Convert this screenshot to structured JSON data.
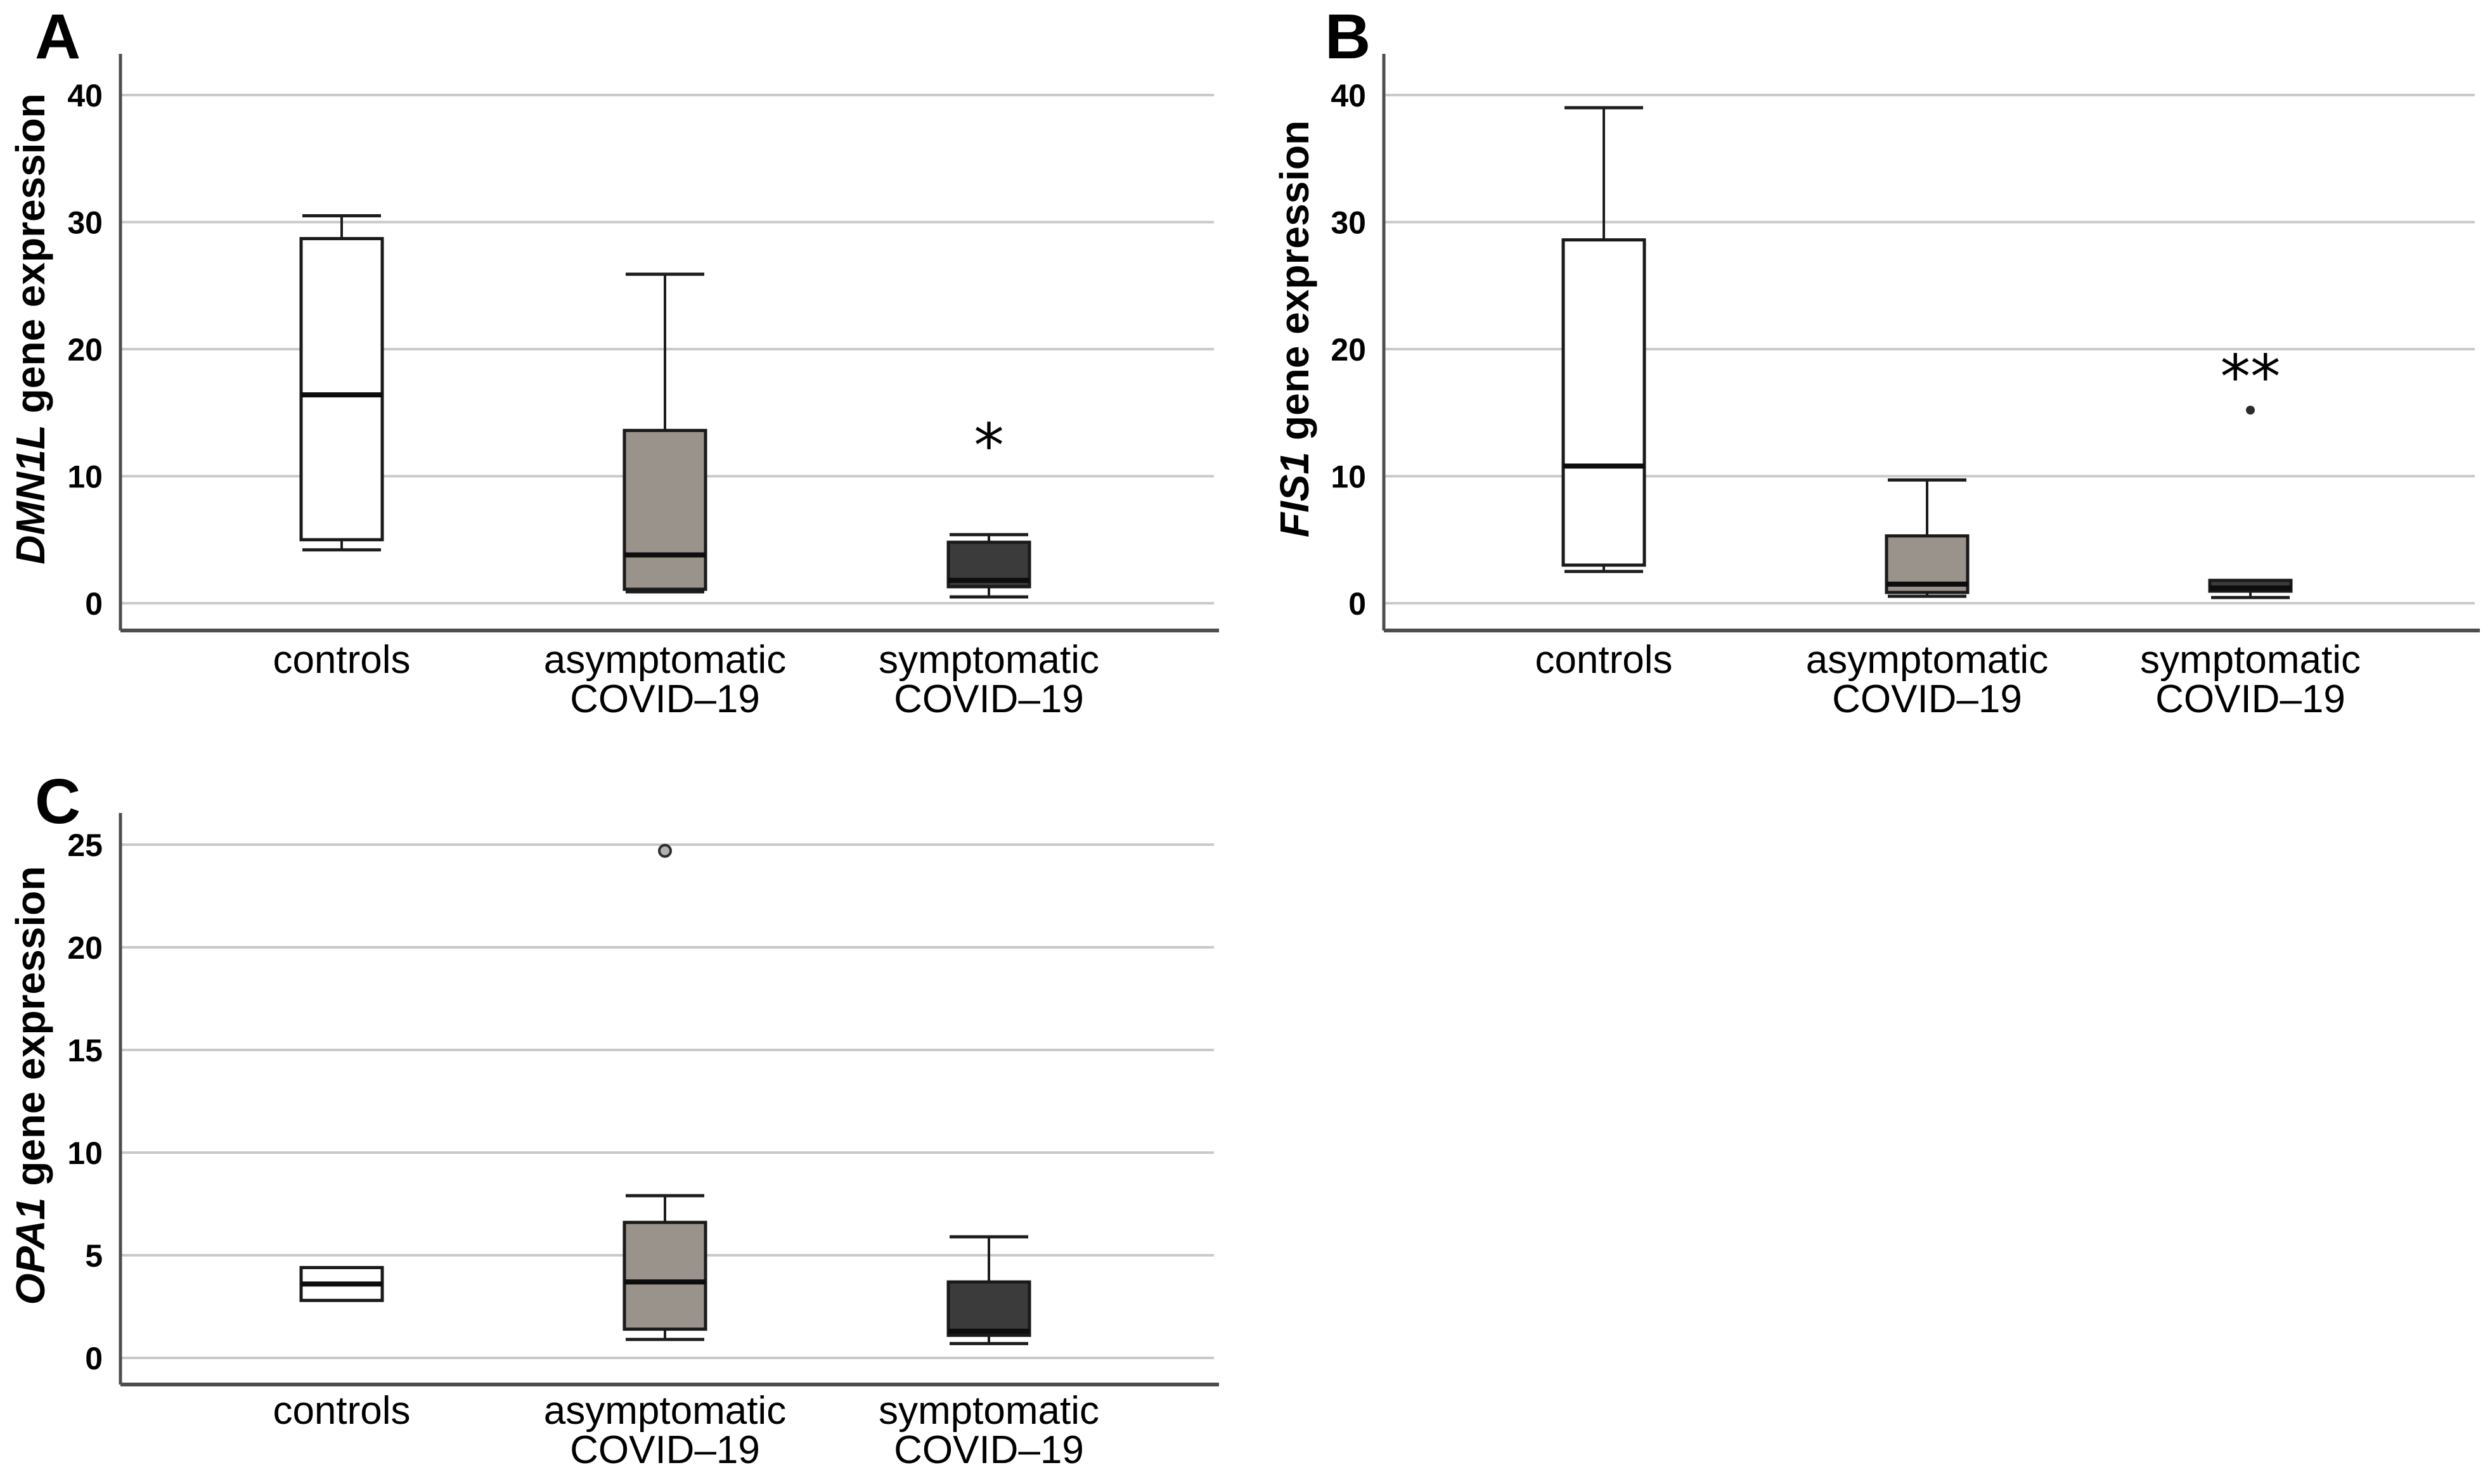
{
  "figure": {
    "background": "#ffffff",
    "styles": {
      "gridline_color": "#c9c9c9",
      "axis_color": "#4d4d4d",
      "box_border_color": "#1a1a1a",
      "whisker_color": "#1d1d1d",
      "median_color": "#0d0d0d",
      "white_box_fill": "#ffffff",
      "gray_box_fill": "#9a938c",
      "dark_box_fill": "#3b3b3b",
      "text_color": "#000000"
    }
  },
  "chart_data": [
    {
      "type": "box",
      "panel_letter": "A",
      "ylabel_gene": "DMN1L",
      "ylabel_rest": "gene expression",
      "yticks": [
        0,
        10,
        20,
        30,
        40
      ],
      "ylim": [
        -2.1,
        43.2
      ],
      "grid": true,
      "legend": null,
      "categories": [
        [
          "controls"
        ],
        [
          "asymptomatic",
          "COVID–19"
        ],
        [
          "symptomatic",
          "COVID–19"
        ]
      ],
      "series": [
        {
          "category": "controls",
          "fill": "#ffffff",
          "whisker_low": 4.2,
          "q1": 5.0,
          "median": 16.4,
          "q3": 28.7,
          "whisker_high": 30.5,
          "outliers": []
        },
        {
          "category": "asymptomatic COVID–19",
          "fill": "#9a938c",
          "whisker_low": 0.9,
          "q1": 1.1,
          "median": 3.8,
          "q3": 13.6,
          "whisker_high": 25.9,
          "outliers": []
        },
        {
          "category": "symptomatic COVID–19",
          "fill": "#3b3b3b",
          "whisker_low": 0.5,
          "q1": 1.3,
          "median": 1.8,
          "q3": 4.8,
          "whisker_high": 5.4,
          "outliers": []
        }
      ],
      "annotations": [
        {
          "text": "*",
          "category_index": 2,
          "y": 12.4
        }
      ]
    },
    {
      "type": "box",
      "panel_letter": "B",
      "ylabel_gene": "FIS1",
      "ylabel_rest": "gene expression",
      "yticks": [
        0,
        10,
        20,
        30,
        40
      ],
      "ylim": [
        -2.1,
        43.2
      ],
      "grid": true,
      "legend": null,
      "categories": [
        [
          "controls"
        ],
        [
          "asymptomatic",
          "COVID–19"
        ],
        [
          "symptomatic",
          "COVID–19"
        ]
      ],
      "series": [
        {
          "category": "controls",
          "fill": "#ffffff",
          "whisker_low": 2.5,
          "q1": 3.0,
          "median": 10.8,
          "q3": 28.6,
          "whisker_high": 39.0,
          "outliers": []
        },
        {
          "category": "asymptomatic COVID–19",
          "fill": "#9a938c",
          "whisker_low": 0.55,
          "q1": 0.85,
          "median": 1.5,
          "q3": 5.3,
          "whisker_high": 9.7,
          "outliers": []
        },
        {
          "category": "symptomatic COVID–19",
          "fill": "#3b3b3b",
          "whisker_low": 0.45,
          "q1": 0.95,
          "median": 1.2,
          "q3": 1.8,
          "whisker_high": null,
          "outliers": [
            {
              "y": 15.2,
              "open": false
            }
          ]
        }
      ],
      "annotations": [
        {
          "text": "**",
          "category_index": 2,
          "y": 17.8
        }
      ]
    },
    {
      "type": "box",
      "panel_letter": "C",
      "ylabel_gene": "OPA1",
      "ylabel_rest": "gene expression",
      "yticks": [
        0,
        5,
        10,
        15,
        20,
        25
      ],
      "ylim": [
        -1.3,
        26.5
      ],
      "grid": true,
      "legend": null,
      "categories": [
        [
          "controls"
        ],
        [
          "asymptomatic",
          "COVID–19"
        ],
        [
          "symptomatic",
          "COVID–19"
        ]
      ],
      "series": [
        {
          "category": "controls",
          "fill": "#ffffff",
          "whisker_low": null,
          "q1": 2.8,
          "median": 3.6,
          "q3": 4.4,
          "whisker_high": null,
          "outliers": []
        },
        {
          "category": "asymptomatic COVID–19",
          "fill": "#9a938c",
          "whisker_low": 0.9,
          "q1": 1.4,
          "median": 3.7,
          "q3": 6.6,
          "whisker_high": 7.9,
          "outliers": [
            {
              "y": 24.7,
              "open": true
            }
          ]
        },
        {
          "category": "symptomatic COVID–19",
          "fill": "#3b3b3b",
          "whisker_low": 0.7,
          "q1": 1.1,
          "median": 1.3,
          "q3": 3.7,
          "whisker_high": 5.9,
          "outliers": []
        }
      ],
      "annotations": []
    }
  ]
}
